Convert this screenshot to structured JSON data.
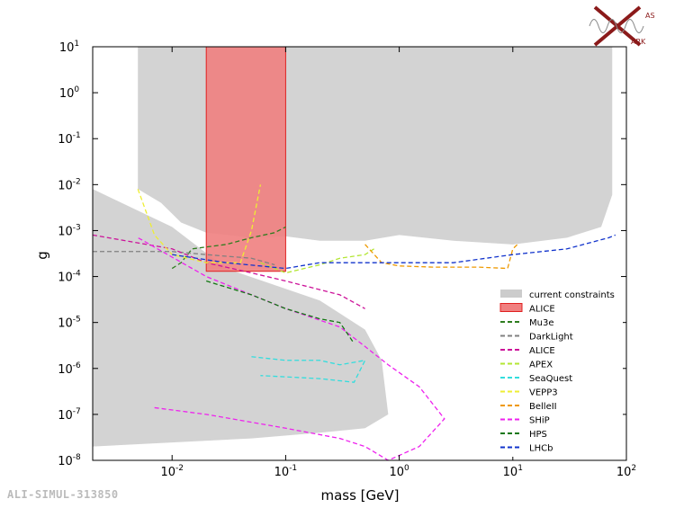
{
  "watermark": "ALI-SIMUL-313850",
  "logo_text": [
    "AS",
    "ARK"
  ],
  "chart_data": {
    "type": "line",
    "xlabel": "mass [GeV]",
    "ylabel": "g",
    "xscale": "log",
    "yscale": "log",
    "xlim": [
      0.002,
      100
    ],
    "ylim": [
      1e-08,
      10
    ],
    "x_ticks": [
      {
        "base": "10",
        "exp": "-2",
        "v": 0.01
      },
      {
        "base": "10",
        "exp": "-1",
        "v": 0.1
      },
      {
        "base": "10",
        "exp": "0",
        "v": 1
      },
      {
        "base": "10",
        "exp": "1",
        "v": 10
      },
      {
        "base": "10",
        "exp": "2",
        "v": 100
      }
    ],
    "y_ticks": [
      {
        "base": "10",
        "exp": "1",
        "v": 10
      },
      {
        "base": "10",
        "exp": "0",
        "v": 1
      },
      {
        "base": "10",
        "exp": "-1",
        "v": 0.1
      },
      {
        "base": "10",
        "exp": "-2",
        "v": 0.01
      },
      {
        "base": "10",
        "exp": "-3",
        "v": 0.001
      },
      {
        "base": "10",
        "exp": "-4",
        "v": 0.0001
      },
      {
        "base": "10",
        "exp": "-5",
        "v": 1e-05
      },
      {
        "base": "10",
        "exp": "-6",
        "v": 1e-06
      },
      {
        "base": "10",
        "exp": "-7",
        "v": 1e-07
      },
      {
        "base": "10",
        "exp": "-8",
        "v": 1e-08
      }
    ],
    "legend_position": "right",
    "legend": [
      {
        "label": "current constraints",
        "kind": "patch",
        "color": "#cccccc"
      },
      {
        "label": "ALICE",
        "kind": "patch",
        "color": "#f08080"
      },
      {
        "label": "Mu3e",
        "kind": "line",
        "color": "#2e7d1f"
      },
      {
        "label": "DarkLight",
        "kind": "line",
        "color": "#808080"
      },
      {
        "label": "ALICE",
        "kind": "line",
        "color": "#cc1199"
      },
      {
        "label": "APEX",
        "kind": "line",
        "color": "#b3e633"
      },
      {
        "label": "SeaQuest",
        "kind": "line",
        "color": "#33dddd"
      },
      {
        "label": "VEPP3",
        "kind": "line",
        "color": "#eeee33"
      },
      {
        "label": "BelleII",
        "kind": "line",
        "color": "#ee9900"
      },
      {
        "label": "SHiP",
        "kind": "line",
        "color": "#ee22ee"
      },
      {
        "label": "HPS",
        "kind": "line",
        "color": "#117711"
      },
      {
        "label": "LHCb",
        "kind": "line",
        "color": "#1133cc"
      }
    ],
    "constraints_upper": [
      [
        0.005,
        10
      ],
      [
        0.005,
        0.008
      ],
      [
        0.008,
        0.004
      ],
      [
        0.012,
        0.0015
      ],
      [
        0.02,
        0.0009
      ],
      [
        0.05,
        0.0007
      ],
      [
        0.1,
        0.00075
      ],
      [
        0.2,
        0.0006
      ],
      [
        0.5,
        0.0006
      ],
      [
        1,
        0.0008
      ],
      [
        3,
        0.0006
      ],
      [
        10,
        0.0005
      ],
      [
        30,
        0.0007
      ],
      [
        60,
        0.0012
      ],
      [
        75,
        0.006
      ],
      [
        75,
        10
      ]
    ],
    "constraints_lower": [
      [
        0.002,
        0.008
      ],
      [
        0.01,
        0.0012
      ],
      [
        0.03,
        0.00015
      ],
      [
        0.2,
        3e-05
      ],
      [
        0.5,
        7e-06
      ],
      [
        0.7,
        1.5e-06
      ],
      [
        0.8,
        1e-07
      ],
      [
        0.5,
        5e-08
      ],
      [
        0.2,
        4e-08
      ],
      [
        0.05,
        3e-08
      ],
      [
        0.002,
        2e-08
      ]
    ],
    "alice_band": {
      "x": [
        0.02,
        0.1
      ],
      "y_low": 0.00013,
      "y_high": 10
    },
    "series": [
      {
        "name": "Mu3e",
        "color": "#2e7d1f",
        "points": [
          [
            0.01,
            0.00015
          ],
          [
            0.012,
            0.0002
          ],
          [
            0.015,
            0.0004
          ],
          [
            0.03,
            0.0005
          ],
          [
            0.05,
            0.0007
          ],
          [
            0.08,
            0.0009
          ],
          [
            0.1,
            0.0012
          ]
        ]
      },
      {
        "name": "DarkLight",
        "color": "#808080",
        "points": [
          [
            0.002,
            0.00035
          ],
          [
            0.01,
            0.00035
          ],
          [
            0.02,
            0.0003
          ],
          [
            0.05,
            0.00025
          ],
          [
            0.08,
            0.00018
          ]
        ]
      },
      {
        "name": "ALICE",
        "color": "#cc1199",
        "points": [
          [
            0.002,
            0.0008
          ],
          [
            0.01,
            0.0004
          ],
          [
            0.02,
            0.0002
          ],
          [
            0.05,
            0.00012
          ],
          [
            0.1,
            8e-05
          ],
          [
            0.3,
            4e-05
          ],
          [
            0.5,
            2e-05
          ]
        ]
      },
      {
        "name": "APEX",
        "color": "#b3e633",
        "points": [
          [
            0.06,
            0.0002
          ],
          [
            0.1,
            0.00012
          ],
          [
            0.2,
            0.00018
          ],
          [
            0.3,
            0.00025
          ],
          [
            0.5,
            0.0003
          ],
          [
            0.6,
            0.0004
          ]
        ]
      },
      {
        "name": "SeaQuest",
        "color": "#33dddd",
        "points": [
          [
            0.05,
            1.8e-06
          ],
          [
            0.1,
            1.5e-06
          ],
          [
            0.2,
            1.5e-06
          ],
          [
            0.3,
            1.2e-06
          ],
          [
            0.5,
            1.5e-06
          ],
          [
            0.4,
            5e-07
          ],
          [
            0.2,
            6e-07
          ],
          [
            0.06,
            7e-07
          ]
        ]
      },
      {
        "name": "VEPP3",
        "color": "#eeee33",
        "points": [
          [
            0.005,
            0.008
          ],
          [
            0.007,
            0.0008
          ],
          [
            0.01,
            0.0003
          ],
          [
            0.02,
            0.0002
          ],
          [
            0.04,
            0.0002
          ],
          [
            0.05,
            0.001
          ],
          [
            0.06,
            0.01
          ]
        ]
      },
      {
        "name": "BelleII",
        "color": "#ee9900",
        "points": [
          [
            0.5,
            0.0005
          ],
          [
            0.7,
            0.0002
          ],
          [
            1,
            0.00017
          ],
          [
            2,
            0.00016
          ],
          [
            5,
            0.00016
          ],
          [
            9,
            0.00015
          ],
          [
            10,
            0.0004
          ],
          [
            11,
            0.0005
          ]
        ]
      },
      {
        "name": "SHiP",
        "color": "#ee22ee",
        "points": [
          [
            0.007,
            1.4e-07
          ],
          [
            0.02,
            1e-07
          ],
          [
            0.1,
            5e-08
          ],
          [
            0.3,
            3e-08
          ],
          [
            0.5,
            2e-08
          ],
          [
            0.8,
            1e-08
          ],
          [
            1.5,
            2e-08
          ],
          [
            2.5,
            8e-08
          ],
          [
            1.5,
            4e-07
          ],
          [
            0.8,
            1.2e-06
          ],
          [
            0.5,
            3e-06
          ],
          [
            0.3,
            8e-06
          ],
          [
            0.1,
            2e-05
          ],
          [
            0.04,
            5e-05
          ],
          [
            0.02,
            0.0001
          ],
          [
            0.005,
            0.0007
          ]
        ]
      },
      {
        "name": "HPS",
        "color": "#117711",
        "points": [
          [
            0.02,
            8e-05
          ],
          [
            0.05,
            4e-05
          ],
          [
            0.1,
            2e-05
          ],
          [
            0.2,
            1.2e-05
          ],
          [
            0.3,
            1e-05
          ],
          [
            0.4,
            3.5e-06
          ]
        ]
      },
      {
        "name": "LHCb",
        "color": "#1133cc",
        "points": [
          [
            0.01,
            0.0003
          ],
          [
            0.03,
            0.0002
          ],
          [
            0.1,
            0.00015
          ],
          [
            0.2,
            0.0002
          ],
          [
            0.5,
            0.0002
          ],
          [
            1,
            0.0002
          ],
          [
            3,
            0.0002
          ],
          [
            10,
            0.0003
          ],
          [
            30,
            0.0004
          ],
          [
            70,
            0.0007
          ],
          [
            80,
            0.0008
          ]
        ]
      }
    ]
  }
}
